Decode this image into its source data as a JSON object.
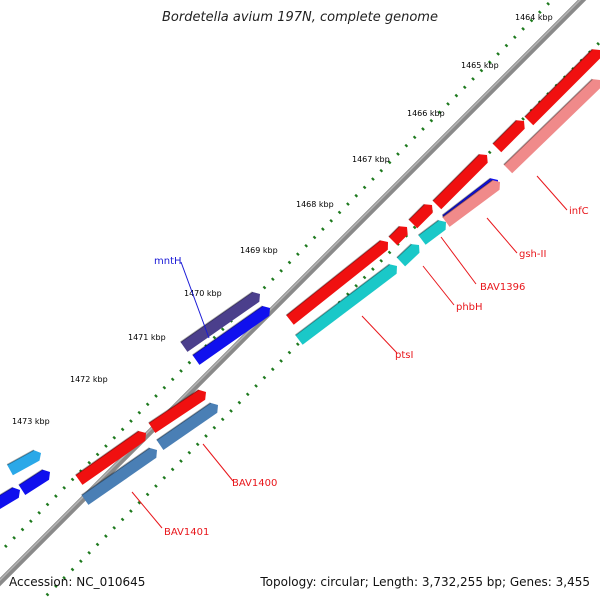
{
  "title": "Bordetella avium 197N, complete genome",
  "footer": {
    "accession": "Accession: NC_010645",
    "stats": "Topology: circular; Length: 3,732,255 bp; Genes: 3,455"
  },
  "ticks": [
    "1464 kbp",
    "1465 kbp",
    "1466 kbp",
    "1467 kbp",
    "1468 kbp",
    "1469 kbp",
    "1470 kbp",
    "1471 kbp",
    "1472 kbp",
    "1473 kbp"
  ],
  "genes": [
    {
      "label": "infC",
      "color": "#e8161b"
    },
    {
      "label": "gsh-II",
      "color": "#e8161b"
    },
    {
      "label": "BAV1396",
      "color": "#e8161b"
    },
    {
      "label": "phbH",
      "color": "#e8161b"
    },
    {
      "label": "ptsI",
      "color": "#e8161b"
    },
    {
      "label": "mntH",
      "color": "#1a1ad6"
    },
    {
      "label": "BAV1400",
      "color": "#e8161b"
    },
    {
      "label": "BAV1401",
      "color": "#e8161b"
    }
  ],
  "colors": {
    "red": "#f01010",
    "pink": "#f08a8a",
    "blue": "#1010ee",
    "cyan": "#1ac8c8",
    "steel": "#4a7fb5",
    "purple": "#4b3f8c",
    "sky": "#2aa8e8",
    "backbone": "#888888",
    "tick": "#1e7a1e"
  }
}
